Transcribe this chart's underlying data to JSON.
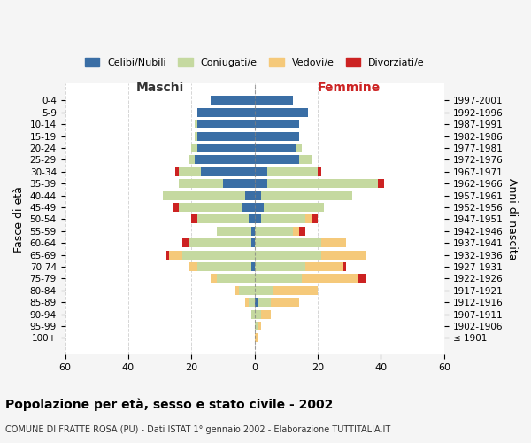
{
  "age_groups": [
    "100+",
    "95-99",
    "90-94",
    "85-89",
    "80-84",
    "75-79",
    "70-74",
    "65-69",
    "60-64",
    "55-59",
    "50-54",
    "45-49",
    "40-44",
    "35-39",
    "30-34",
    "25-29",
    "20-24",
    "15-19",
    "10-14",
    "5-9",
    "0-4"
  ],
  "birth_years": [
    "≤ 1901",
    "1902-1906",
    "1907-1911",
    "1912-1916",
    "1917-1921",
    "1922-1926",
    "1927-1931",
    "1932-1936",
    "1937-1941",
    "1942-1946",
    "1947-1951",
    "1952-1956",
    "1957-1961",
    "1962-1966",
    "1967-1971",
    "1972-1976",
    "1977-1981",
    "1982-1986",
    "1987-1991",
    "1992-1996",
    "1997-2001"
  ],
  "colors": {
    "celibi": "#3a6ea5",
    "coniugati": "#c5d9a0",
    "vedovi": "#f5c97a",
    "divorziati": "#cc2222"
  },
  "male": {
    "celibi": [
      0,
      0,
      0,
      0,
      0,
      0,
      1,
      0,
      1,
      1,
      2,
      4,
      3,
      10,
      17,
      19,
      18,
      18,
      18,
      18,
      14
    ],
    "coniugati": [
      0,
      0,
      1,
      2,
      5,
      12,
      17,
      23,
      20,
      11,
      16,
      20,
      26,
      14,
      7,
      2,
      2,
      1,
      1,
      0,
      0
    ],
    "vedovi": [
      0,
      0,
      0,
      1,
      1,
      2,
      3,
      4,
      0,
      0,
      0,
      0,
      0,
      0,
      0,
      0,
      0,
      0,
      0,
      0,
      0
    ],
    "divorziati": [
      0,
      0,
      0,
      0,
      0,
      0,
      0,
      1,
      2,
      0,
      2,
      2,
      0,
      0,
      1,
      0,
      0,
      0,
      0,
      0,
      0
    ]
  },
  "female": {
    "nubili": [
      0,
      0,
      0,
      1,
      0,
      0,
      0,
      0,
      0,
      0,
      2,
      3,
      2,
      4,
      4,
      14,
      13,
      14,
      14,
      17,
      12
    ],
    "coniugate": [
      0,
      1,
      2,
      4,
      6,
      15,
      16,
      21,
      21,
      12,
      14,
      19,
      29,
      35,
      16,
      4,
      2,
      0,
      0,
      0,
      0
    ],
    "vedove": [
      1,
      1,
      3,
      9,
      14,
      18,
      12,
      14,
      8,
      2,
      2,
      0,
      0,
      0,
      0,
      0,
      0,
      0,
      0,
      0,
      0
    ],
    "divorziate": [
      0,
      0,
      0,
      0,
      0,
      2,
      1,
      0,
      0,
      2,
      2,
      0,
      0,
      2,
      1,
      0,
      0,
      0,
      0,
      0,
      0
    ]
  },
  "xlim": 60,
  "xticks": [
    60,
    40,
    20,
    0,
    20,
    40,
    60
  ],
  "title": "Popolazione per età, sesso e stato civile - 2002",
  "subtitle": "COMUNE DI FRATTE ROSA (PU) - Dati ISTAT 1° gennaio 2002 - Elaborazione TUTTITALIA.IT",
  "ylabel": "Fasce di età",
  "ylabel_right": "Anni di nascita",
  "legend_labels": [
    "Celibi/Nubili",
    "Coniugati/e",
    "Vedovi/e",
    "Divorziati/e"
  ],
  "maschi_label": "Maschi",
  "femmine_label": "Femmine",
  "bg_color": "#f5f5f5",
  "plot_bg_color": "#ffffff"
}
